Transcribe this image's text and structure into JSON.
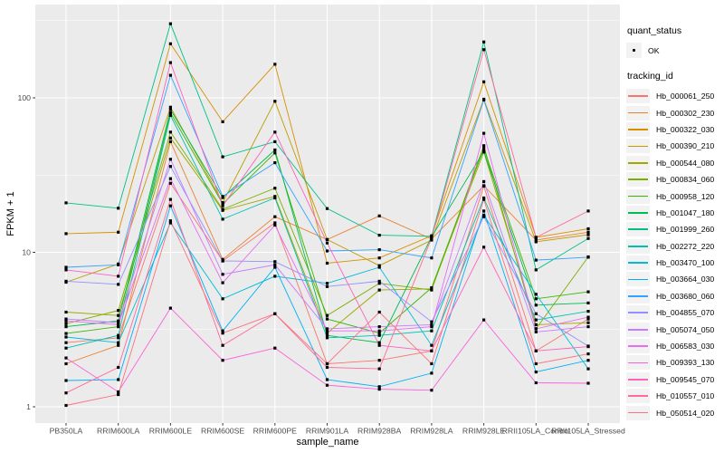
{
  "chart_data": {
    "type": "line",
    "title": "",
    "xlabel": "sample_name",
    "ylabel": "FPKM + 1",
    "y_scale": "log10",
    "y_axis_ticks": [
      1,
      10,
      100
    ],
    "y_axis_tick_labels": [
      "1",
      "10",
      "100"
    ],
    "y_minor_ticks": [
      3.1623,
      31.623,
      316.23
    ],
    "ylim": [
      0.84,
      400
    ],
    "grid": "on",
    "legend_position": "right",
    "point_shape": "small black square (quant_status OK)",
    "categories": [
      "PB350LA",
      "RRIM600LA",
      "RRIM600LE",
      "RRIM600SE",
      "RRIM600PE",
      "RRIM901LA",
      "RRIM928BA",
      "RRIM928LA",
      "RRIM928LE",
      "RRII105LA_Control",
      "RRII105LA_Stressed"
    ],
    "series": [
      {
        "name": "Hb_000061_250",
        "color": "#F8766D",
        "values": [
          2.6,
          2.8,
          28,
          8.8,
          15.5,
          1.9,
          2.0,
          2.3,
          26.8,
          2.3,
          3.7
        ]
      },
      {
        "name": "Hb_000302_230",
        "color": "#EA8331",
        "values": [
          1.9,
          2.5,
          52,
          9.0,
          17.0,
          12.1,
          17.2,
          12.2,
          27.0,
          12.0,
          13.5
        ]
      },
      {
        "name": "Hb_000322_030",
        "color": "#D89000",
        "values": [
          13.2,
          13.5,
          224,
          70,
          165,
          8.5,
          9.2,
          12.8,
          127,
          12.5,
          14.2
        ]
      },
      {
        "name": "Hb_000390_210",
        "color": "#C09B00",
        "values": [
          6.4,
          8.4,
          87,
          21,
          95,
          12.1,
          8.2,
          12.0,
          98,
          11.7,
          13.0
        ]
      },
      {
        "name": "Hb_000544_080",
        "color": "#A3A500",
        "values": [
          4.1,
          3.9,
          55,
          18.7,
          23,
          3.0,
          5.7,
          5.8,
          44.6,
          3.4,
          3.5
        ]
      },
      {
        "name": "Hb_000834_060",
        "color": "#7CAE00",
        "values": [
          3.45,
          4.2,
          60,
          19.0,
          26,
          3.9,
          6.3,
          5.7,
          49,
          3.2,
          9.35
        ]
      },
      {
        "name": "Hb_000958_120",
        "color": "#39B600",
        "values": [
          2.98,
          3.3,
          80,
          20.6,
          44,
          3.7,
          3.0,
          5.9,
          47,
          5.0,
          5.55
        ]
      },
      {
        "name": "Hb_001047_180",
        "color": "#00BB4E",
        "values": [
          3.3,
          3.6,
          84,
          22.6,
          46,
          2.9,
          2.6,
          12.6,
          45,
          4.55,
          4.7
        ]
      },
      {
        "name": "Hb_001999_260",
        "color": "#00C087",
        "values": [
          20.9,
          19.3,
          302,
          41.5,
          52,
          19.2,
          12.9,
          12.7,
          230,
          7.7,
          12.3
        ]
      },
      {
        "name": "Hb_002272_220",
        "color": "#00C0AF",
        "values": [
          2.4,
          2.9,
          77,
          16.4,
          22.5,
          2.8,
          2.9,
          3.1,
          22.5,
          3.65,
          4.15
        ]
      },
      {
        "name": "Hb_003470_100",
        "color": "#00BCD8",
        "values": [
          2.83,
          2.6,
          15.5,
          5.0,
          7.0,
          6.3,
          8.0,
          2.5,
          17.4,
          5.35,
          1.76
        ]
      },
      {
        "name": "Hb_003664_030",
        "color": "#00B0F6",
        "values": [
          1.48,
          1.5,
          20,
          3.1,
          8.0,
          1.5,
          1.35,
          1.65,
          18.5,
          1.68,
          2.0
        ]
      },
      {
        "name": "Hb_003680_060",
        "color": "#35A2FF",
        "values": [
          8.0,
          8.3,
          140,
          23,
          38,
          10.2,
          10.4,
          9.2,
          97,
          8.9,
          9.3
        ]
      },
      {
        "name": "Hb_004855_070",
        "color": "#9590FF",
        "values": [
          6.5,
          6.2,
          36,
          8.8,
          8.7,
          6.0,
          6.5,
          3.55,
          17.0,
          4.0,
          2.47
        ]
      },
      {
        "name": "Hb_005074_050",
        "color": "#C77CFF",
        "values": [
          3.7,
          3.5,
          40,
          7.2,
          8.3,
          3.2,
          3.3,
          3.4,
          28.7,
          3.05,
          3.3
        ]
      },
      {
        "name": "Hb_006583_030",
        "color": "#E76BF3",
        "values": [
          3.6,
          3.4,
          30,
          6.35,
          15.0,
          3.1,
          3.1,
          3.3,
          59,
          3.2,
          3.8
        ]
      },
      {
        "name": "Hb_009393_130",
        "color": "#FA62DB",
        "values": [
          2.07,
          1.25,
          4.35,
          2.0,
          2.4,
          1.38,
          1.3,
          1.28,
          3.65,
          1.43,
          1.42
        ]
      },
      {
        "name": "Hb_009545_070",
        "color": "#FF62BC",
        "values": [
          7.7,
          7.0,
          169,
          20.0,
          60,
          11.5,
          2.5,
          2.3,
          10.8,
          2.3,
          2.45
        ]
      },
      {
        "name": "Hb_010557_010",
        "color": "#FF6A98",
        "values": [
          1.23,
          1.8,
          22,
          2.5,
          4.0,
          1.8,
          1.76,
          12.4,
          205,
          12.5,
          18.5
        ]
      },
      {
        "name": "Hb_050514_020",
        "color": "#FC717F",
        "values": [
          1.02,
          1.2,
          16,
          3.0,
          4.0,
          1.9,
          4.1,
          1.9,
          22.0,
          1.9,
          2.2
        ]
      }
    ],
    "legend": {
      "shape_title": "quant_status",
      "shape_items": [
        {
          "label": "OK",
          "shape": "point",
          "color": "#000000"
        }
      ],
      "color_title": "tracking_id"
    }
  },
  "colors": {
    "figure_bg": "#FFFFFF",
    "panel_bg": "#EBEBEB",
    "gridline": "#FFFFFF",
    "point": "#000000",
    "tick": "#333333",
    "tick_label": "#4D4D4D",
    "axis_title": "#000000",
    "legend_key_bg": "#F2F2F2"
  }
}
